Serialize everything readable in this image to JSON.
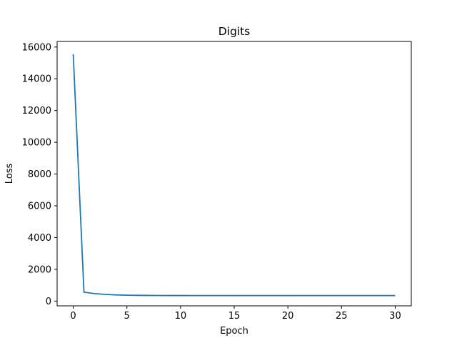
{
  "chart_data": {
    "type": "line",
    "title": "Digits",
    "xlabel": "Epoch",
    "ylabel": "Loss",
    "xlim": [
      -1.5,
      31.5
    ],
    "ylim": [
      -300,
      16350
    ],
    "x_ticks": [
      0,
      5,
      10,
      15,
      20,
      25,
      30
    ],
    "y_ticks": [
      0,
      2000,
      4000,
      6000,
      8000,
      10000,
      12000,
      14000,
      16000
    ],
    "grid": false,
    "legend": "none",
    "series": [
      {
        "color": "#1f77b4",
        "x": [
          0,
          1,
          2,
          3,
          4,
          5,
          6,
          7,
          8,
          9,
          10,
          11,
          12,
          13,
          14,
          15,
          16,
          17,
          18,
          19,
          20,
          21,
          22,
          23,
          24,
          25,
          26,
          27,
          28,
          29,
          30
        ],
        "y": [
          15550,
          560,
          470,
          420,
          390,
          370,
          360,
          355,
          352,
          350,
          349,
          348,
          348,
          347,
          347,
          347,
          346,
          346,
          346,
          346,
          346,
          346,
          346,
          346,
          346,
          346,
          346,
          346,
          346,
          346,
          346
        ]
      }
    ]
  }
}
